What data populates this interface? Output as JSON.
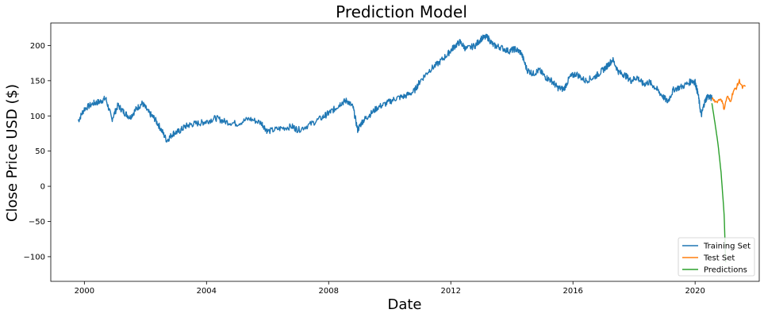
{
  "chart_data": {
    "type": "line",
    "title": "Prediction Model",
    "xlabel": "Date",
    "ylabel": "Close Price USD ($)",
    "xlim": [
      1998.9,
      2022.1
    ],
    "ylim": [
      -135,
      232
    ],
    "x_ticks": [
      {
        "value": 2000,
        "label": "2000"
      },
      {
        "value": 2004,
        "label": "2004"
      },
      {
        "value": 2008,
        "label": "2008"
      },
      {
        "value": 2012,
        "label": "2012"
      },
      {
        "value": 2016,
        "label": "2016"
      },
      {
        "value": 2020,
        "label": "2020"
      }
    ],
    "y_ticks": [
      {
        "value": 200,
        "label": "200"
      },
      {
        "value": 150,
        "label": "150"
      },
      {
        "value": 100,
        "label": "100"
      },
      {
        "value": 50,
        "label": "50"
      },
      {
        "value": 0,
        "label": "0"
      },
      {
        "value": -50,
        "label": "−50"
      },
      {
        "value": -100,
        "label": "−100"
      }
    ],
    "grid": false,
    "legend_position": "bottom-right",
    "series": [
      {
        "name": "Training Set",
        "color": "#1f77b4",
        "x": [
          1999.8,
          2000.0,
          2000.3,
          2000.5,
          2000.7,
          2000.9,
          2001.1,
          2001.3,
          2001.5,
          2001.7,
          2001.9,
          2002.1,
          2002.3,
          2002.5,
          2002.7,
          2002.9,
          2003.1,
          2003.3,
          2003.5,
          2003.8,
          2004.0,
          2004.3,
          2004.6,
          2005.0,
          2005.4,
          2005.8,
          2006.0,
          2006.4,
          2006.8,
          2007.0,
          2007.4,
          2007.8,
          2008.0,
          2008.2,
          2008.4,
          2008.6,
          2008.8,
          2008.95,
          2009.1,
          2009.3,
          2009.6,
          2009.9,
          2010.2,
          2010.5,
          2010.8,
          2011.0,
          2011.3,
          2011.6,
          2011.9,
          2012.1,
          2012.3,
          2012.5,
          2012.8,
          2013.0,
          2013.2,
          2013.4,
          2013.6,
          2013.9,
          2014.1,
          2014.3,
          2014.5,
          2014.7,
          2014.9,
          2015.1,
          2015.3,
          2015.5,
          2015.7,
          2015.9,
          2016.1,
          2016.4,
          2016.7,
          2016.9,
          2017.1,
          2017.3,
          2017.5,
          2017.7,
          2017.9,
          2018.1,
          2018.3,
          2018.5,
          2018.7,
          2018.9,
          2019.1,
          2019.3,
          2019.6,
          2019.9,
          2020.0,
          2020.1,
          2020.2,
          2020.3,
          2020.4,
          2020.55
        ],
        "values": [
          93,
          110,
          118,
          120,
          125,
          95,
          115,
          105,
          98,
          110,
          118,
          105,
          96,
          82,
          65,
          75,
          78,
          85,
          88,
          90,
          92,
          97,
          92,
          89,
          96,
          90,
          78,
          82,
          85,
          80,
          88,
          98,
          104,
          110,
          118,
          122,
          112,
          80,
          92,
          100,
          112,
          118,
          125,
          128,
          135,
          150,
          165,
          175,
          188,
          198,
          205,
          195,
          200,
          210,
          212,
          200,
          198,
          192,
          195,
          190,
          165,
          160,
          165,
          155,
          150,
          140,
          138,
          155,
          160,
          150,
          155,
          162,
          170,
          180,
          162,
          158,
          150,
          155,
          145,
          148,
          140,
          130,
          120,
          138,
          142,
          150,
          148,
          130,
          100,
          118,
          128,
          125
        ]
      },
      {
        "name": "Test Set",
        "color": "#ff7f0e",
        "x": [
          2020.55,
          2020.7,
          2020.85,
          2020.95,
          2021.05,
          2021.15,
          2021.25,
          2021.35,
          2021.45,
          2021.55,
          2021.65
        ],
        "values": [
          125,
          120,
          125,
          110,
          128,
          120,
          135,
          140,
          150,
          140,
          143
        ]
      },
      {
        "name": "Predictions",
        "color": "#2ca02c",
        "x": [
          2020.55,
          2020.65,
          2020.75,
          2020.85,
          2020.95,
          2021.0
        ],
        "values": [
          118,
          90,
          60,
          20,
          -40,
          -108
        ]
      }
    ]
  }
}
